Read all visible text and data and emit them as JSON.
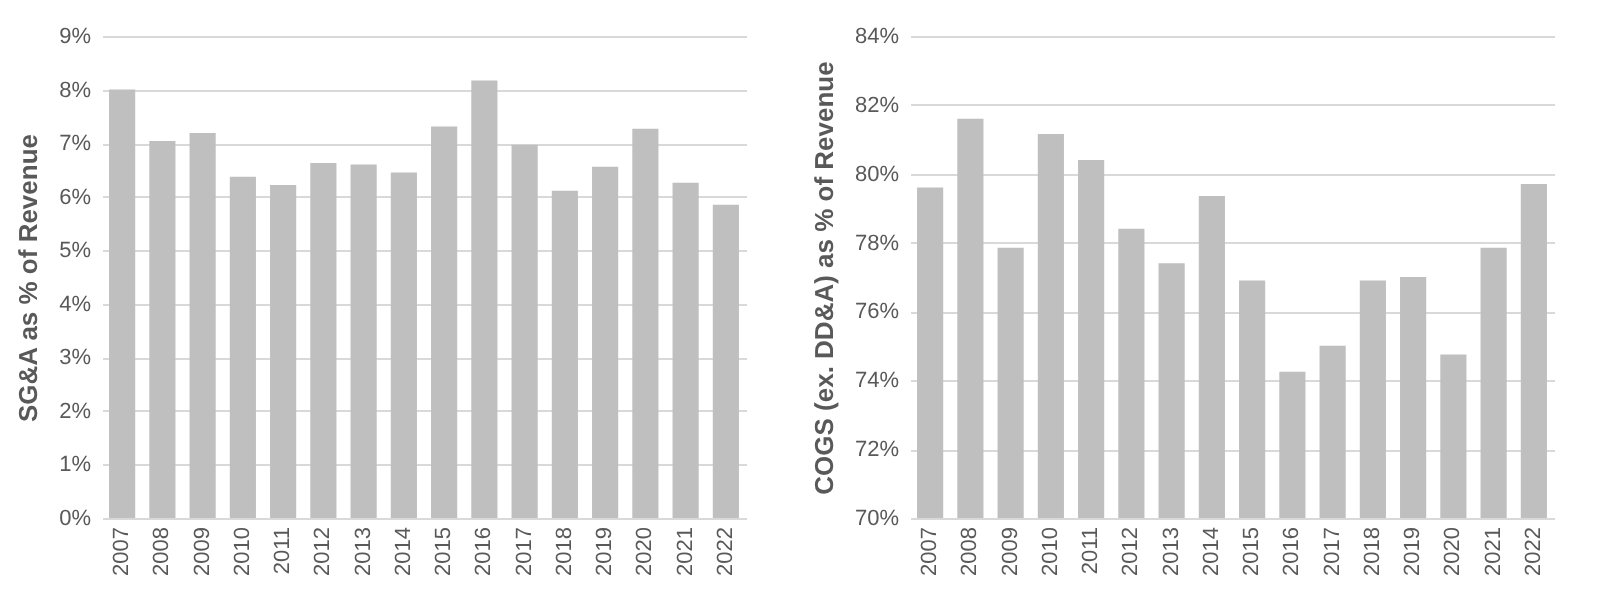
{
  "chart_data": [
    {
      "type": "bar",
      "ylabel": "SG&A as % of Revenue",
      "categories": [
        "2007",
        "2008",
        "2009",
        "2010",
        "2011",
        "2012",
        "2013",
        "2014",
        "2015",
        "2016",
        "2017",
        "2018",
        "2019",
        "2020",
        "2021",
        "2022"
      ],
      "values": [
        8.0,
        7.04,
        7.19,
        6.37,
        6.22,
        6.63,
        6.6,
        6.45,
        7.31,
        8.17,
        6.97,
        6.11,
        6.56,
        7.27,
        6.26,
        5.85
      ],
      "color": "#bfbfbf",
      "ylim": [
        0,
        9
      ],
      "yticks": [
        {
          "value": 0,
          "label": "0%"
        },
        {
          "value": 1,
          "label": "1%"
        },
        {
          "value": 2,
          "label": "2%"
        },
        {
          "value": 3,
          "label": "3%"
        },
        {
          "value": 4,
          "label": "4%"
        },
        {
          "value": 5,
          "label": "5%"
        },
        {
          "value": 6,
          "label": "6%"
        },
        {
          "value": 7,
          "label": "7%"
        },
        {
          "value": 8,
          "label": "8%"
        },
        {
          "value": 9,
          "label": "9%"
        }
      ],
      "grid": "y"
    },
    {
      "type": "bar",
      "ylabel": "COGS (ex. DD&A) as % of Revenue",
      "categories": [
        "2007",
        "2008",
        "2009",
        "2010",
        "2011",
        "2012",
        "2013",
        "2014",
        "2015",
        "2016",
        "2017",
        "2018",
        "2019",
        "2020",
        "2021",
        "2022"
      ],
      "values": [
        79.6,
        81.6,
        77.85,
        81.15,
        80.4,
        78.4,
        77.4,
        79.35,
        76.9,
        74.25,
        75.0,
        76.9,
        77.0,
        74.75,
        77.85,
        79.7
      ],
      "color": "#bfbfbf",
      "ylim": [
        70,
        84
      ],
      "yticks": [
        {
          "value": 70,
          "label": "70%"
        },
        {
          "value": 72,
          "label": "72%"
        },
        {
          "value": 74,
          "label": "74%"
        },
        {
          "value": 76,
          "label": "76%"
        },
        {
          "value": 78,
          "label": "78%"
        },
        {
          "value": 80,
          "label": "80%"
        },
        {
          "value": 82,
          "label": "82%"
        },
        {
          "value": 84,
          "label": "84%"
        }
      ],
      "grid": "y"
    }
  ]
}
